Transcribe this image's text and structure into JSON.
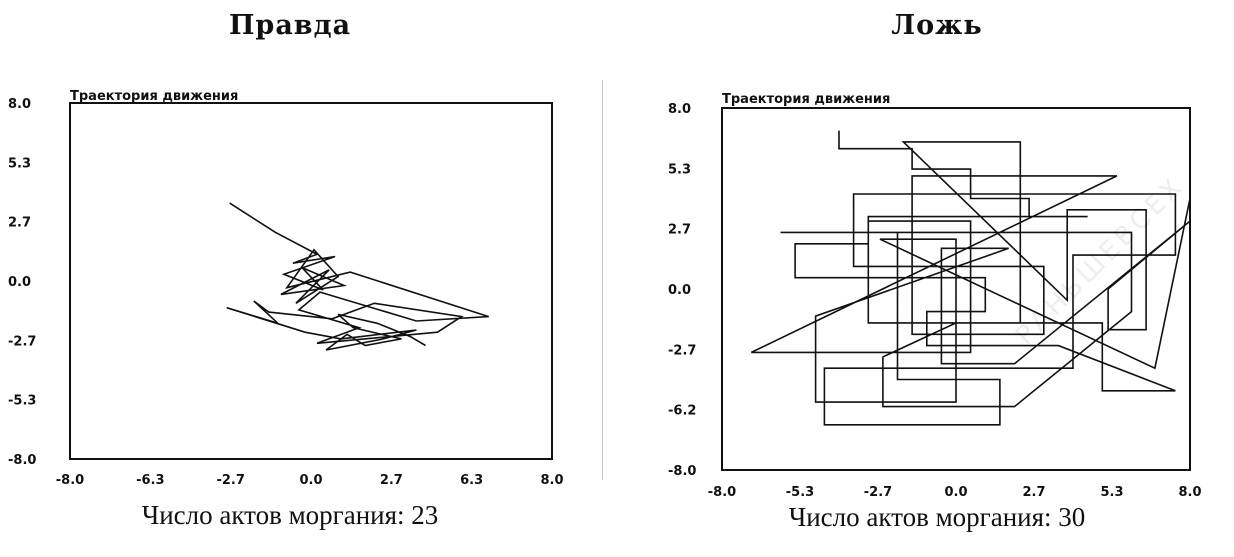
{
  "chart_data": [
    {
      "type": "line",
      "heading": "Правда",
      "title": "Траектория движения",
      "caption": "Число актов моргания: 23",
      "x_ticks": [
        "-8.0",
        "-6.3",
        "-2.7",
        "0.0",
        "2.7",
        "6.3",
        "8.0"
      ],
      "y_ticks": [
        "8.0",
        "5.3",
        "2.7",
        "0.0",
        "-2.7",
        "-5.3",
        "-8.0"
      ],
      "xlim": [
        -8.0,
        8.0
      ],
      "ylim": [
        -8.0,
        8.0
      ],
      "grid": false,
      "series": [
        {
          "x": [
            -2.7,
            -1.2,
            0.2,
            -0.6,
            0.8,
            -0.9,
            0.4,
            -0.3,
            1.1,
            -1.0,
            0.6,
            -0.5,
            0.9,
            0.1,
            -0.8,
            1.3,
            5.9,
            3.5,
            0.3,
            -0.4,
            1.6,
            0.2,
            4.2,
            5.0,
            2.1,
            0.7,
            -1.4,
            -1.9,
            -1.1,
            -2.8,
            -0.2,
            1.0,
            3.5,
            2.4,
            0.5,
            1.2,
            1.8,
            3.0,
            1.4,
            0.9,
            2.2,
            3.3,
            3.8
          ],
          "y": [
            3.5,
            2.2,
            1.2,
            0.8,
            1.1,
            0.3,
            -0.4,
            0.6,
            -0.2,
            -0.6,
            0.5,
            -1.0,
            0.2,
            1.4,
            -0.3,
            0.4,
            -1.6,
            -1.8,
            -0.5,
            -1.3,
            -2.1,
            -2.8,
            -2.3,
            -1.6,
            -1.0,
            -1.7,
            -1.4,
            -0.9,
            -1.9,
            -1.2,
            -2.3,
            -2.6,
            -2.2,
            -2.6,
            -3.1,
            -2.4,
            -2.9,
            -2.6,
            -2.1,
            -1.5,
            -1.9,
            -2.5,
            -2.9
          ]
        }
      ]
    },
    {
      "type": "line",
      "heading": "Ложь",
      "title": "Траектория движения",
      "caption": "Число актов моргания: 30",
      "x_ticks": [
        "-8.0",
        "-5.3",
        "-2.7",
        "0.0",
        "2.7",
        "5.3",
        "8.0"
      ],
      "y_ticks": [
        "8.0",
        "5.3",
        "2.7",
        "0.0",
        "-2.7",
        "-6.2",
        "-8.0"
      ],
      "xlim": [
        -8.0,
        8.0
      ],
      "ylim": [
        -8.0,
        8.0
      ],
      "grid": false,
      "series": [
        {
          "x": [
            -4.0,
            -4.0,
            -1.5,
            -1.5,
            0.5,
            0.5,
            2.5,
            2.5,
            4.5,
            -3.0,
            -3.0,
            -5.5,
            -5.5,
            -2.0,
            1.0,
            1.0,
            -1.0,
            -1.0,
            3.5,
            7.5,
            5.0,
            5.0,
            0.0,
            -2.5,
            -2.5,
            2.0,
            6.0,
            6.0,
            -6.0,
            -2.0,
            -2.0,
            1.5,
            1.5,
            -4.5,
            -4.5,
            0.8,
            4.0,
            4.0,
            7.5,
            7.5,
            -3.5,
            -3.5,
            3.0,
            3.0,
            -1.5,
            -1.5,
            5.5,
            -7.0,
            -2.0,
            0.5,
            0.5,
            -3.0,
            -3.0,
            2.2,
            2.2,
            -1.8,
            3.8,
            3.8,
            6.5,
            6.5,
            5.2,
            5.2,
            8.0,
            2.0,
            -0.5,
            -0.5,
            1.8,
            -4.8,
            -4.8,
            0.0,
            0.0,
            -2.6,
            6.8,
            8.0
          ],
          "y": [
            7.0,
            6.2,
            6.2,
            5.3,
            5.3,
            4.0,
            4.0,
            3.2,
            3.2,
            3.2,
            2.0,
            2.0,
            0.5,
            0.5,
            0.5,
            -1.0,
            -1.0,
            -2.5,
            -2.5,
            -4.5,
            -4.5,
            -1.5,
            -1.5,
            -3.0,
            -5.2,
            -5.2,
            -1.0,
            2.5,
            2.5,
            2.5,
            -4.0,
            -4.0,
            -6.0,
            -6.0,
            -3.5,
            -3.5,
            -3.5,
            1.5,
            1.5,
            4.2,
            4.2,
            1.0,
            1.0,
            -2.0,
            -2.0,
            5.0,
            5.0,
            -2.8,
            -2.8,
            -2.8,
            3.0,
            3.0,
            -1.5,
            -1.5,
            6.5,
            6.5,
            -0.5,
            3.5,
            3.5,
            -1.8,
            -1.8,
            0.0,
            3.0,
            -3.3,
            -3.3,
            1.8,
            1.8,
            -1.2,
            -5.0,
            -5.0,
            2.2,
            2.2,
            -3.5,
            4.0
          ]
        }
      ]
    }
  ],
  "watermark": "РАНЬШЕВСЕХ"
}
